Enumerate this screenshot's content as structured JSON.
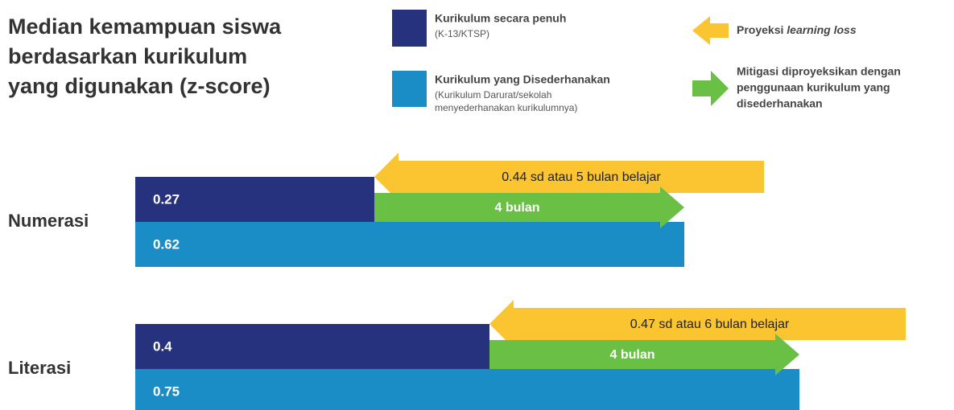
{
  "chart_data": {
    "type": "bar",
    "title_lines": [
      "Median kemampuan siswa",
      "berdasarkan kurikulum",
      "yang digunakan (z-score)"
    ],
    "categories": [
      "Numerasi",
      "Literasi"
    ],
    "series": [
      {
        "name": "Kurikulum secara penuh",
        "note_lines": [
          "(K-13/KTSP)"
        ],
        "color": "#27327f",
        "values": [
          0.27,
          0.4
        ]
      },
      {
        "name": "Kurikulum yang Disederhanakan",
        "note_lines": [
          "(Kurikulum Darurat/sekolah",
          "menyederhanakan kurikulumnya)"
        ],
        "color": "#1b8dc6",
        "values": [
          0.62,
          0.75
        ]
      }
    ],
    "loss": {
      "name": "Proyeksi",
      "name_italic": "learning loss",
      "color": "#fbc531",
      "values": [
        0.44,
        0.47
      ],
      "value_labels": [
        "0.44 sd atau 5 bulan belajar",
        "0.47 sd atau 6 bulan belajar"
      ]
    },
    "mitigation": {
      "name_lines": [
        "Mitigasi diproyeksikan dengan",
        "penggunaan kurikulum yang",
        "disederhanakan"
      ],
      "color": "#6abf45",
      "labels": [
        "4 bulan",
        "4 bulan"
      ]
    }
  }
}
